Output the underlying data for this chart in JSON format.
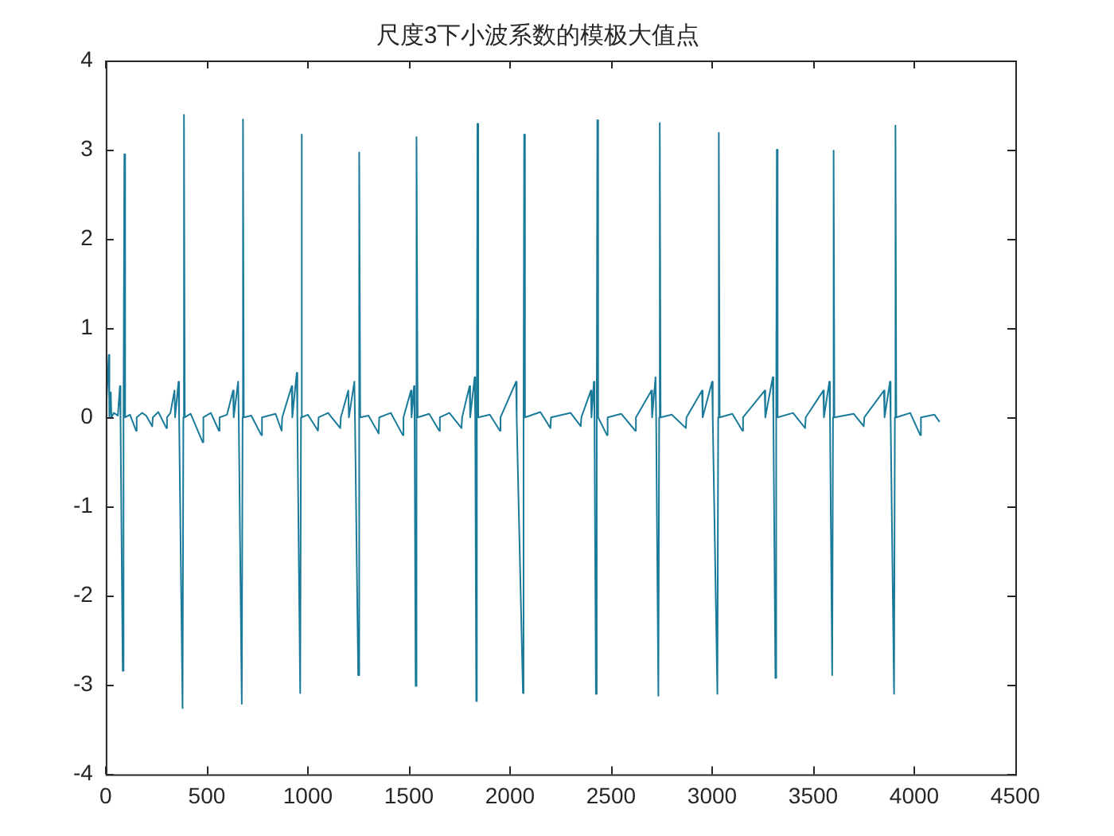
{
  "chart_data": {
    "type": "line",
    "title": "尺度3下小波系数的模极大值点",
    "xlim": [
      0,
      4500
    ],
    "xticks": [
      0,
      500,
      1000,
      1500,
      2000,
      2500,
      3000,
      3500,
      4000,
      4500
    ],
    "ylim": [
      -4,
      4
    ],
    "yticks": [
      -4,
      -3,
      -2,
      -1,
      0,
      1,
      2,
      3,
      4
    ],
    "legend": false,
    "marker": "none",
    "line_style": "solid",
    "series": [
      {
        "color": "#1a7a99",
        "x": [
          0,
          15,
          18,
          25,
          28,
          40,
          60,
          70,
          73,
          84,
          88,
          92,
          96,
          120,
          150,
          153,
          180,
          200,
          230,
          233,
          260,
          300,
          303,
          320,
          340,
          343,
          360,
          363,
          380,
          384,
          387,
          391,
          420,
          480,
          483,
          520,
          560,
          563,
          600,
          630,
          633,
          655,
          658,
          673,
          677,
          679,
          683,
          720,
          770,
          773,
          840,
          870,
          873,
          920,
          923,
          945,
          948,
          962,
          966,
          968,
          972,
          1000,
          1050,
          1053,
          1100,
          1160,
          1163,
          1200,
          1203,
          1230,
          1233,
          1249,
          1253,
          1255,
          1259,
          1300,
          1350,
          1353,
          1410,
          1470,
          1473,
          1510,
          1513,
          1525,
          1528,
          1533,
          1536,
          1539,
          1543,
          1600,
          1650,
          1653,
          1700,
          1760,
          1763,
          1800,
          1803,
          1825,
          1828,
          1833,
          1836,
          1839,
          1843,
          1900,
          1950,
          1953,
          2030,
          2033,
          2064,
          2067,
          2070,
          2074,
          2150,
          2200,
          2203,
          2300,
          2350,
          2353,
          2400,
          2403,
          2415,
          2418,
          2425,
          2429,
          2432,
          2436,
          2480,
          2483,
          2550,
          2620,
          2623,
          2700,
          2703,
          2720,
          2723,
          2734,
          2738,
          2741,
          2745,
          2800,
          2870,
          2873,
          2950,
          2953,
          3000,
          3003,
          3026,
          3030,
          3033,
          3037,
          3100,
          3150,
          3153,
          3260,
          3263,
          3300,
          3303,
          3313,
          3317,
          3320,
          3324,
          3400,
          3460,
          3463,
          3550,
          3553,
          3580,
          3583,
          3594,
          3598,
          3601,
          3605,
          3700,
          3750,
          3753,
          3850,
          3853,
          3880,
          3883,
          3900,
          3904,
          3907,
          3911,
          3980,
          4030,
          4033,
          4100,
          4125
        ],
        "values": [
          0,
          0.7,
          0,
          0.28,
          0,
          0.05,
          0.02,
          0.35,
          0,
          -2.84,
          0,
          2.95,
          0,
          0.03,
          -0.15,
          0,
          0.05,
          0.02,
          -0.1,
          0,
          0.06,
          -0.12,
          0,
          0.05,
          0.3,
          0,
          0.4,
          0,
          -3.26,
          0,
          3.39,
          0,
          0.04,
          -0.28,
          0,
          0.05,
          -0.15,
          0,
          0.03,
          0.3,
          0,
          0.4,
          0,
          -3.21,
          0,
          3.34,
          0,
          0.02,
          -0.2,
          0,
          0.04,
          -0.15,
          0,
          0.35,
          0,
          0.5,
          0,
          -3.09,
          0,
          3.17,
          0,
          0.03,
          -0.15,
          0,
          0.05,
          -0.12,
          0,
          0.3,
          0,
          0.4,
          0,
          -2.89,
          0,
          2.97,
          0,
          0.02,
          -0.18,
          0,
          0.05,
          -0.2,
          0,
          0.3,
          0,
          0.35,
          0,
          -3.01,
          0,
          3.14,
          0,
          0.04,
          -0.15,
          0,
          0.05,
          -0.12,
          0,
          0.35,
          0,
          0.45,
          0,
          -3.18,
          0,
          3.29,
          0,
          0.03,
          -0.15,
          0,
          0.4,
          0,
          -3.09,
          0,
          3.17,
          0,
          0.06,
          -0.12,
          0,
          0.05,
          -0.1,
          0,
          0.3,
          0,
          0.4,
          0,
          -3.1,
          0,
          3.33,
          0,
          -0.2,
          0,
          0.04,
          -0.15,
          0,
          0.3,
          0,
          0.45,
          0,
          -3.12,
          0,
          3.3,
          0,
          0.03,
          -0.12,
          0,
          0.3,
          0,
          0.4,
          0,
          -3.1,
          0,
          3.19,
          0,
          0.04,
          -0.15,
          0,
          0.3,
          0,
          0.45,
          0,
          -2.92,
          0,
          3.0,
          0,
          0.05,
          -0.12,
          0,
          0.3,
          0,
          0.4,
          0,
          -2.89,
          0,
          2.99,
          0,
          0.04,
          -0.1,
          0,
          0.3,
          0,
          0.4,
          0,
          -3.1,
          0,
          3.27,
          0,
          0.05,
          -0.2,
          0,
          0.03,
          -0.05
        ]
      }
    ]
  }
}
